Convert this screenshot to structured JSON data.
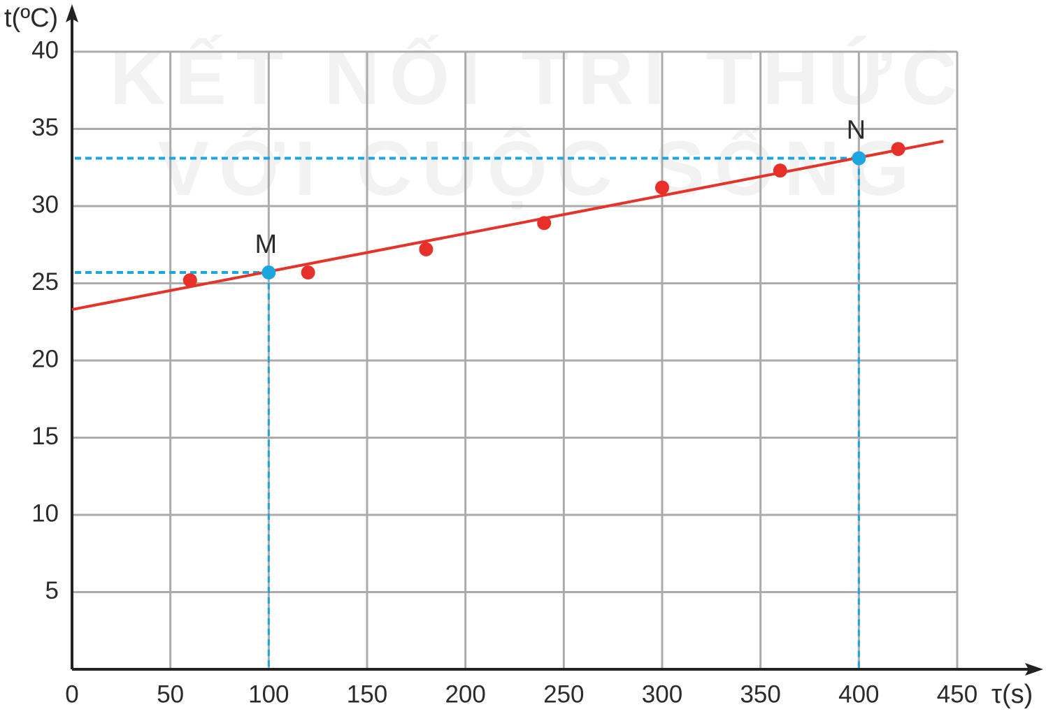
{
  "chart_data": {
    "type": "scatter",
    "watermark": [
      "KẾT NỐI TRI THỨC",
      "VỚI CUỘC SỐNG"
    ],
    "x_label": "τ(s)",
    "y_label": "t(ºC)",
    "xlim": [
      0,
      450
    ],
    "ylim": [
      0,
      40
    ],
    "xticks": [
      0,
      50,
      100,
      150,
      200,
      250,
      300,
      350,
      400,
      450
    ],
    "yticks": [
      5,
      10,
      15,
      20,
      25,
      30,
      35,
      40
    ],
    "grid": true,
    "points": {
      "color": "#e8302a",
      "x": [
        60,
        120,
        180,
        240,
        300,
        360,
        420
      ],
      "values": [
        25.2,
        25.7,
        27.2,
        28.9,
        31.2,
        32.3,
        33.7
      ]
    },
    "fit_line": {
      "color": "#e5332a",
      "x": [
        0,
        443
      ],
      "values": [
        23.3,
        34.2
      ]
    },
    "marked_points": [
      {
        "label": "M",
        "x": 100,
        "y": 25.7,
        "color": "#1ba6e0"
      },
      {
        "label": "N",
        "x": 400,
        "y": 33.1,
        "color": "#1ba6e0"
      }
    ]
  }
}
